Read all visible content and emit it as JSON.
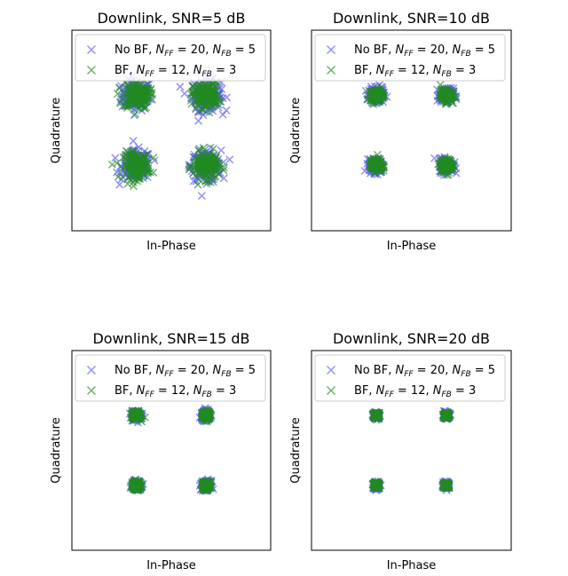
{
  "chart_data": [
    {
      "type": "scatter",
      "title": "Downlink, SNR=5 dB",
      "xlabel": "In-Phase",
      "ylabel": "Quadrature",
      "ticks": "none",
      "xlim": [
        -2,
        2
      ],
      "ylim": [
        -2,
        2
      ],
      "legend_position": "top",
      "constellation": [
        [
          -0.7,
          0.7
        ],
        [
          0.7,
          0.7
        ],
        [
          -0.7,
          -0.7
        ],
        [
          0.7,
          -0.7
        ]
      ],
      "series": [
        {
          "name": "No BF, N_FF = 20, N_FB = 5",
          "color": "#5b5bf0",
          "marker": "x",
          "noise_std": 0.15
        },
        {
          "name": "BF, N_FF = 12, N_FB = 3",
          "color": "#228b22",
          "marker": "x",
          "noise_std": 0.13
        }
      ]
    },
    {
      "type": "scatter",
      "title": "Downlink, SNR=10 dB",
      "xlabel": "In-Phase",
      "ylabel": "Quadrature",
      "ticks": "none",
      "xlim": [
        -2,
        2
      ],
      "ylim": [
        -2,
        2
      ],
      "legend_position": "top",
      "constellation": [
        [
          -0.7,
          0.7
        ],
        [
          0.7,
          0.7
        ],
        [
          -0.7,
          -0.7
        ],
        [
          0.7,
          -0.7
        ]
      ],
      "series": [
        {
          "name": "No BF, N_FF = 20, N_FB = 5",
          "color": "#5b5bf0",
          "marker": "x",
          "noise_std": 0.07
        },
        {
          "name": "BF, N_FF = 12, N_FB = 3",
          "color": "#228b22",
          "marker": "x",
          "noise_std": 0.06
        }
      ]
    },
    {
      "type": "scatter",
      "title": "Downlink, SNR=15 dB",
      "xlabel": "In-Phase",
      "ylabel": "Quadrature",
      "ticks": "none",
      "xlim": [
        -2,
        2
      ],
      "ylim": [
        -2,
        2
      ],
      "legend_position": "top",
      "constellation": [
        [
          -0.7,
          0.7
        ],
        [
          0.7,
          0.7
        ],
        [
          -0.7,
          -0.7
        ],
        [
          0.7,
          -0.7
        ]
      ],
      "series": [
        {
          "name": "No BF, N_FF = 20, N_FB = 5",
          "color": "#5b5bf0",
          "marker": "x",
          "noise_std": 0.045
        },
        {
          "name": "BF, N_FF = 12, N_FB = 3",
          "color": "#228b22",
          "marker": "x",
          "noise_std": 0.04
        }
      ]
    },
    {
      "type": "scatter",
      "title": "Downlink, SNR=20 dB",
      "xlabel": "In-Phase",
      "ylabel": "Quadrature",
      "ticks": "none",
      "xlim": [
        -2,
        2
      ],
      "ylim": [
        -2,
        2
      ],
      "legend_position": "top",
      "constellation": [
        [
          -0.7,
          0.7
        ],
        [
          0.7,
          0.7
        ],
        [
          -0.7,
          -0.7
        ],
        [
          0.7,
          -0.7
        ]
      ],
      "series": [
        {
          "name": "No BF, N_FF = 20, N_FB = 5",
          "color": "#5b5bf0",
          "marker": "x",
          "noise_std": 0.03
        },
        {
          "name": "BF, N_FF = 12, N_FB = 3",
          "color": "#228b22",
          "marker": "x",
          "noise_std": 0.025
        }
      ]
    }
  ],
  "legend_labels": [
    {
      "prefix": "No BF, ",
      "ff_value": "20",
      "fb_value": "5"
    },
    {
      "prefix": "BF, ",
      "ff_value": "12",
      "fb_value": "3"
    }
  ],
  "legend_symbols": {
    "n": "N",
    "ff": "FF",
    "fb": "FB",
    "eq": " = ",
    "sep": ", "
  }
}
